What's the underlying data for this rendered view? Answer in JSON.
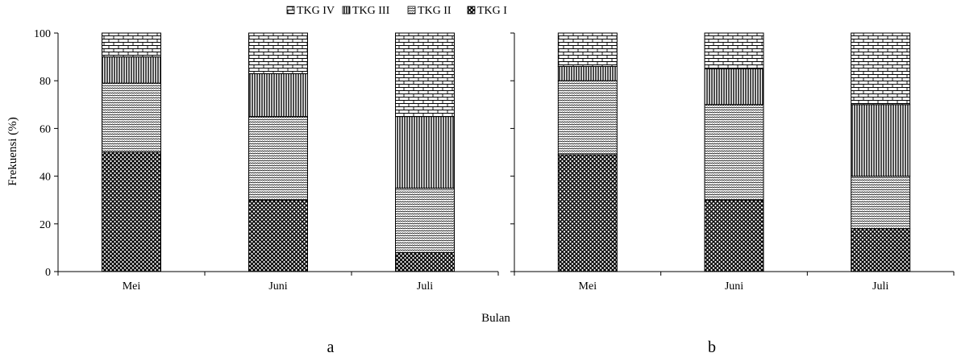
{
  "chart_data": [
    {
      "type": "bar",
      "stacked": true,
      "panel_label": "a",
      "categories": [
        "Mei",
        "Juni",
        "Juli"
      ],
      "series": [
        {
          "name": "TKG I",
          "values": [
            50,
            30,
            8
          ]
        },
        {
          "name": "TKG II",
          "values": [
            29,
            35,
            27
          ]
        },
        {
          "name": "TKG III",
          "values": [
            11,
            18,
            30
          ]
        },
        {
          "name": "TKG IV",
          "values": [
            10,
            17,
            35
          ]
        }
      ],
      "ylabel": "Frekuensi (%)",
      "xlabel": "Bulan",
      "ylim": [
        0,
        100
      ],
      "yticks": [
        0,
        20,
        40,
        60,
        80,
        100
      ],
      "grid": false
    },
    {
      "type": "bar",
      "stacked": true,
      "panel_label": "b",
      "categories": [
        "Mei",
        "Juni",
        "Juli"
      ],
      "series": [
        {
          "name": "TKG I",
          "values": [
            49,
            30,
            18
          ]
        },
        {
          "name": "TKG II",
          "values": [
            31,
            40,
            22
          ]
        },
        {
          "name": "TKG III",
          "values": [
            6,
            15,
            30
          ]
        },
        {
          "name": "TKG IV",
          "values": [
            14,
            15,
            30
          ]
        }
      ],
      "xlabel": "Bulan",
      "ylim": [
        0,
        100
      ],
      "grid": false
    }
  ],
  "legend": {
    "position": "top",
    "items": [
      {
        "label": "TKG IV",
        "pattern": "brick"
      },
      {
        "label": "TKG III",
        "pattern": "vertical-lines"
      },
      {
        "label": "TKG II",
        "pattern": "wave"
      },
      {
        "label": "TKG I",
        "pattern": "crosshatch"
      }
    ]
  },
  "shared_xlabel": "Bulan"
}
